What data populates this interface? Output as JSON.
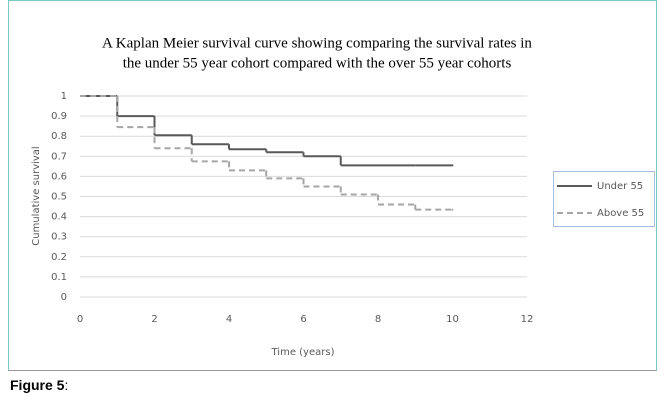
{
  "chart_data": {
    "type": "step",
    "title": [
      "A Kaplan Meier survival curve showing comparing the survival rates in",
      "the under 55 year cohort compared with the over 55 year cohorts"
    ],
    "x_label": "Time (years)",
    "y_label": "Cumulative survival",
    "x": [
      0,
      1,
      2,
      3,
      4,
      5,
      6,
      7,
      8,
      9,
      10
    ],
    "series": [
      {
        "name": "Under 55",
        "color": "#595959",
        "style": "solid",
        "values": [
          1,
          0.9,
          0.805,
          0.76,
          0.735,
          0.72,
          0.7,
          0.655,
          0.655,
          0.655,
          0.655
        ]
      },
      {
        "name": "Above 55",
        "color": "#a6a6a6",
        "style": "dashed",
        "values": [
          1,
          0.845,
          0.74,
          0.675,
          0.63,
          0.59,
          0.55,
          0.51,
          0.46,
          0.435,
          0.435
        ]
      }
    ],
    "xlim": [
      0,
      12
    ],
    "xticks": [
      0,
      2,
      4,
      6,
      8,
      10,
      12
    ],
    "ylim": [
      0,
      1
    ],
    "yticks": [
      0,
      0.1,
      0.2,
      0.3,
      0.4,
      0.5,
      0.6,
      0.7,
      0.8,
      0.9,
      1
    ],
    "grid": true,
    "legend": "right"
  },
  "figure": {
    "label": "Figure 5",
    "suffix": ":"
  }
}
